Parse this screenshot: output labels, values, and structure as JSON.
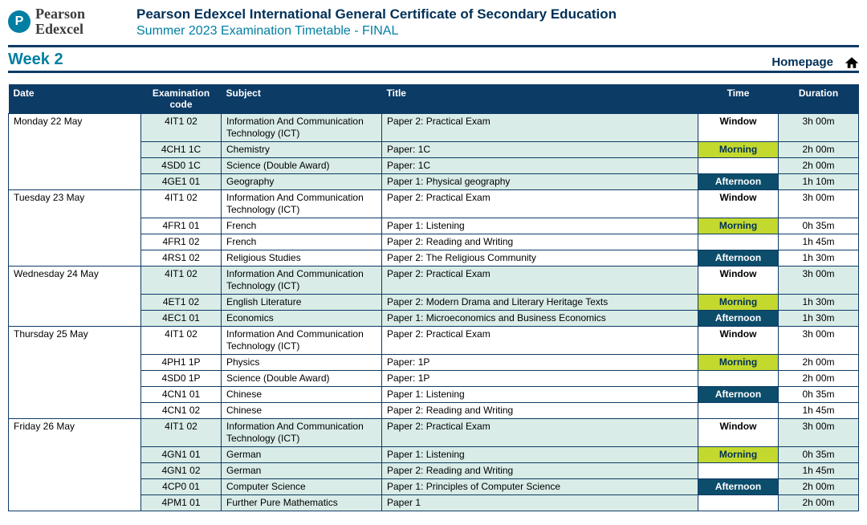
{
  "brand": {
    "name_line1": "Pearson",
    "name_line2": "Edexcel",
    "badge_letter": "P",
    "badge_color": "#007fa3"
  },
  "header": {
    "title": "Pearson Edexcel International General Certificate of Secondary Education",
    "subtitle": "Summer 2023 Examination Timetable - FINAL"
  },
  "week": {
    "label": "Week 2",
    "homepage_label": "Homepage"
  },
  "colors": {
    "header_bg": "#0c3b66",
    "tint_bg": "#d9ece7",
    "morning_bg": "#c4d92e",
    "morning_fg": "#003057",
    "afternoon_bg": "#0c4d6b",
    "afternoon_fg": "#ffffff",
    "accent": "#007fa3"
  },
  "time_labels": {
    "window": "Window",
    "morning": "Morning",
    "afternoon": "Afternoon"
  },
  "columns": {
    "date": "Date",
    "code": "Examination code",
    "subject": "Subject",
    "title": "Title",
    "time": "Time",
    "duration": "Duration"
  },
  "days": [
    {
      "date": "Monday 22 May",
      "rows": [
        {
          "tint": true,
          "code": "4IT1 02",
          "subject": "Information And Communication Technology (ICT)",
          "title": "Paper 2: Practical Exam",
          "time": "window",
          "duration": "3h 00m"
        },
        {
          "tint": true,
          "code": "4CH1 1C",
          "subject": "Chemistry",
          "title": "Paper: 1C",
          "time": "morning",
          "duration": "2h 00m"
        },
        {
          "tint": true,
          "code": "4SD0 1C",
          "subject": "Science (Double Award)",
          "title": "Paper: 1C",
          "time": "",
          "duration": "2h 00m"
        },
        {
          "tint": true,
          "code": "4GE1 01",
          "subject": "Geography",
          "title": "Paper 1: Physical geography",
          "time": "afternoon",
          "duration": "1h 10m"
        }
      ]
    },
    {
      "date": "Tuesday 23 May",
      "rows": [
        {
          "tint": false,
          "code": "4IT1 02",
          "subject": "Information And Communication Technology (ICT)",
          "title": "Paper 2: Practical Exam",
          "time": "window",
          "duration": "3h 00m"
        },
        {
          "tint": false,
          "code": "4FR1 01",
          "subject": "French",
          "title": "Paper 1: Listening",
          "time": "morning",
          "duration": "0h 35m"
        },
        {
          "tint": false,
          "code": "4FR1 02",
          "subject": "French",
          "title": "Paper 2: Reading and Writing",
          "time": "",
          "duration": "1h 45m"
        },
        {
          "tint": false,
          "code": "4RS1 02",
          "subject": "Religious Studies",
          "title": "Paper 2: The Religious Community",
          "time": "afternoon",
          "duration": "1h 30m"
        }
      ]
    },
    {
      "date": "Wednesday 24 May",
      "rows": [
        {
          "tint": true,
          "code": "4IT1 02",
          "subject": "Information And Communication Technology (ICT)",
          "title": "Paper 2: Practical Exam",
          "time": "window",
          "duration": "3h 00m"
        },
        {
          "tint": true,
          "code": "4ET1 02",
          "subject": "English Literature",
          "title": "Paper 2: Modern Drama and Literary Heritage Texts",
          "time": "morning",
          "duration": "1h 30m"
        },
        {
          "tint": true,
          "code": "4EC1 01",
          "subject": "Economics",
          "title": "Paper 1: Microeconomics and Business Economics",
          "time": "afternoon",
          "duration": "1h 30m"
        }
      ]
    },
    {
      "date": "Thursday 25 May",
      "rows": [
        {
          "tint": false,
          "code": "4IT1 02",
          "subject": "Information And Communication Technology (ICT)",
          "title": "Paper 2: Practical Exam",
          "time": "window",
          "duration": "3h 00m"
        },
        {
          "tint": false,
          "code": "4PH1 1P",
          "subject": "Physics",
          "title": "Paper: 1P",
          "time": "morning",
          "duration": "2h 00m"
        },
        {
          "tint": false,
          "code": "4SD0 1P",
          "subject": "Science (Double Award)",
          "title": "Paper: 1P",
          "time": "",
          "duration": "2h 00m"
        },
        {
          "tint": false,
          "code": "4CN1 01",
          "subject": "Chinese",
          "title": "Paper 1: Listening",
          "time": "afternoon",
          "duration": "0h 35m"
        },
        {
          "tint": false,
          "code": "4CN1 02",
          "subject": "Chinese",
          "title": "Paper 2: Reading and Writing",
          "time": "",
          "duration": "1h 45m"
        }
      ]
    },
    {
      "date": "Friday 26 May",
      "rows": [
        {
          "tint": true,
          "code": "4IT1 02",
          "subject": "Information And Communication Technology (ICT)",
          "title": "Paper 2: Practical Exam",
          "time": "window",
          "duration": "3h 00m"
        },
        {
          "tint": true,
          "code": "4GN1 01",
          "subject": "German",
          "title": "Paper 1: Listening",
          "time": "morning",
          "duration": "0h 35m"
        },
        {
          "tint": true,
          "code": "4GN1 02",
          "subject": "German",
          "title": "Paper 2: Reading and Writing",
          "time": "",
          "duration": "1h 45m"
        },
        {
          "tint": true,
          "code": "4CP0 01",
          "subject": "Computer Science",
          "title": "Paper 1: Principles of Computer Science",
          "time": "afternoon",
          "duration": "2h 00m"
        },
        {
          "tint": true,
          "code": "4PM1 01",
          "subject": "Further Pure Mathematics",
          "title": "Paper 1",
          "time": "",
          "duration": "2h 00m"
        }
      ]
    }
  ]
}
